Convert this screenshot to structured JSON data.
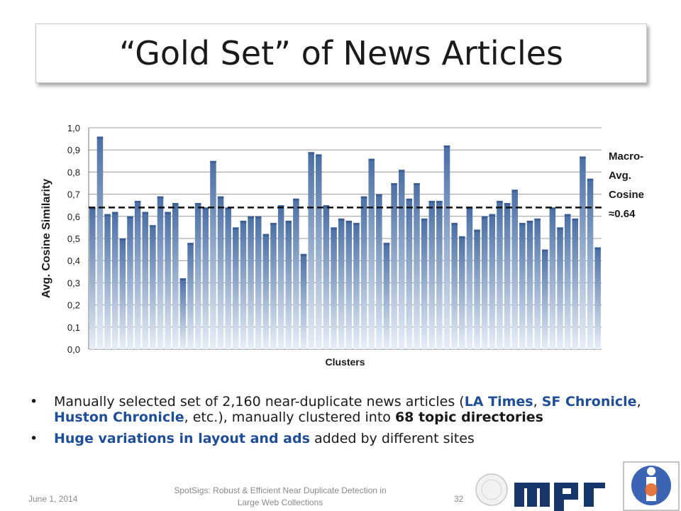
{
  "title": "“Gold Set” of News Articles",
  "bullets": {
    "b1": {
      "p1": "Manually selected set of 2,160 near-duplicate news articles (",
      "la": "LA Times",
      "p2": ", ",
      "sf": "SF Chronicle",
      "p3": ", ",
      "hc": "Huston Chronicle",
      "p4": ", etc.), manually clustered into ",
      "topics": "68 topic directories"
    },
    "b2": {
      "hl": "Huge variations in layout and ads",
      "rest": " added by different sites"
    }
  },
  "footer": {
    "date": "June 1, 2014",
    "title": "SpotSigs: Robust & Efficient Near Duplicate Detection in Large Web Collections",
    "page": "32"
  },
  "colors": {
    "bar_top": "#4a6fa5",
    "bar_bottom": "#e8eff8",
    "text_blue": "#1f4e99"
  },
  "chart_data": {
    "type": "bar",
    "xlabel": "Clusters",
    "ylabel": "Avg. Cosine Similarity",
    "ylim": [
      0.0,
      1.0
    ],
    "yticks": [
      "0,0",
      "0,1",
      "0,2",
      "0,3",
      "0,4",
      "0,5",
      "0,6",
      "0,7",
      "0,8",
      "0,9",
      "1,0"
    ],
    "grid": true,
    "reference_line": {
      "value": 0.64,
      "label_lines": [
        "Macro-",
        "Avg.",
        "Cosine",
        "≈0.64"
      ]
    },
    "values": [
      0.64,
      0.96,
      0.61,
      0.62,
      0.5,
      0.6,
      0.67,
      0.62,
      0.56,
      0.69,
      0.62,
      0.66,
      0.32,
      0.48,
      0.66,
      0.64,
      0.85,
      0.69,
      0.64,
      0.55,
      0.58,
      0.6,
      0.6,
      0.52,
      0.57,
      0.65,
      0.58,
      0.68,
      0.43,
      0.89,
      0.88,
      0.65,
      0.55,
      0.59,
      0.58,
      0.57,
      0.69,
      0.86,
      0.7,
      0.48,
      0.75,
      0.81,
      0.68,
      0.75,
      0.59,
      0.67,
      0.67,
      0.92,
      0.57,
      0.51,
      0.64,
      0.54,
      0.6,
      0.61,
      0.67,
      0.66,
      0.72,
      0.57,
      0.58,
      0.59,
      0.45,
      0.64,
      0.55,
      0.61,
      0.59,
      0.87,
      0.77,
      0.46
    ]
  }
}
